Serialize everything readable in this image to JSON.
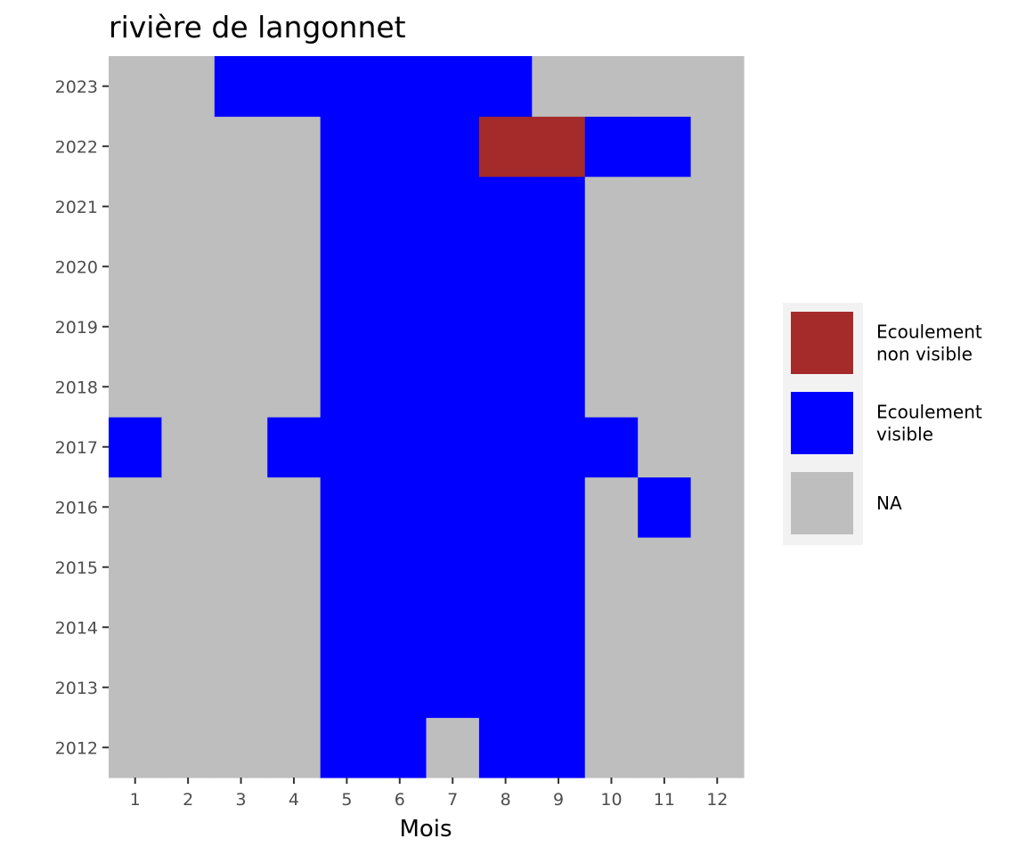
{
  "chart_data": {
    "type": "heatmap",
    "title": "rivière de langonnet",
    "xlabel": "Mois",
    "ylabel": "",
    "x_categories": [
      "1",
      "2",
      "3",
      "4",
      "5",
      "6",
      "7",
      "8",
      "9",
      "10",
      "11",
      "12"
    ],
    "y_categories": [
      "2012",
      "2013",
      "2014",
      "2015",
      "2016",
      "2017",
      "2018",
      "2019",
      "2020",
      "2021",
      "2022",
      "2023"
    ],
    "fill_categories": [
      {
        "key": "non_visible",
        "label": "Ecoulement\nnon visible",
        "color": "#a52a2a"
      },
      {
        "key": "visible",
        "label": "Ecoulement\nvisible",
        "color": "#0000ff"
      },
      {
        "key": "na",
        "label": "NA",
        "color": "#bebebe"
      }
    ],
    "cells": [
      {
        "year": "2012",
        "months": {
          "5": "visible",
          "6": "visible",
          "8": "visible",
          "9": "visible"
        }
      },
      {
        "year": "2013",
        "months": {
          "5": "visible",
          "6": "visible",
          "7": "visible",
          "8": "visible",
          "9": "visible"
        }
      },
      {
        "year": "2014",
        "months": {
          "5": "visible",
          "6": "visible",
          "7": "visible",
          "8": "visible",
          "9": "visible"
        }
      },
      {
        "year": "2015",
        "months": {
          "5": "visible",
          "6": "visible",
          "7": "visible",
          "8": "visible",
          "9": "visible"
        }
      },
      {
        "year": "2016",
        "months": {
          "5": "visible",
          "6": "visible",
          "7": "visible",
          "8": "visible",
          "9": "visible",
          "11": "visible"
        }
      },
      {
        "year": "2017",
        "months": {
          "1": "visible",
          "4": "visible",
          "5": "visible",
          "6": "visible",
          "7": "visible",
          "8": "visible",
          "9": "visible",
          "10": "visible"
        }
      },
      {
        "year": "2018",
        "months": {
          "5": "visible",
          "6": "visible",
          "7": "visible",
          "8": "visible",
          "9": "visible"
        }
      },
      {
        "year": "2019",
        "months": {
          "5": "visible",
          "6": "visible",
          "7": "visible",
          "8": "visible",
          "9": "visible"
        }
      },
      {
        "year": "2020",
        "months": {
          "5": "visible",
          "6": "visible",
          "7": "visible",
          "8": "visible",
          "9": "visible"
        }
      },
      {
        "year": "2021",
        "months": {
          "5": "visible",
          "6": "visible",
          "7": "visible",
          "8": "visible",
          "9": "visible"
        }
      },
      {
        "year": "2022",
        "months": {
          "5": "visible",
          "6": "visible",
          "7": "visible",
          "8": "non_visible",
          "9": "non_visible",
          "10": "visible",
          "11": "visible"
        }
      },
      {
        "year": "2023",
        "months": {
          "3": "visible",
          "4": "visible",
          "5": "visible",
          "6": "visible",
          "7": "visible",
          "8": "visible"
        }
      }
    ],
    "legend_position": "right",
    "panel_background": "#ebebeb"
  }
}
